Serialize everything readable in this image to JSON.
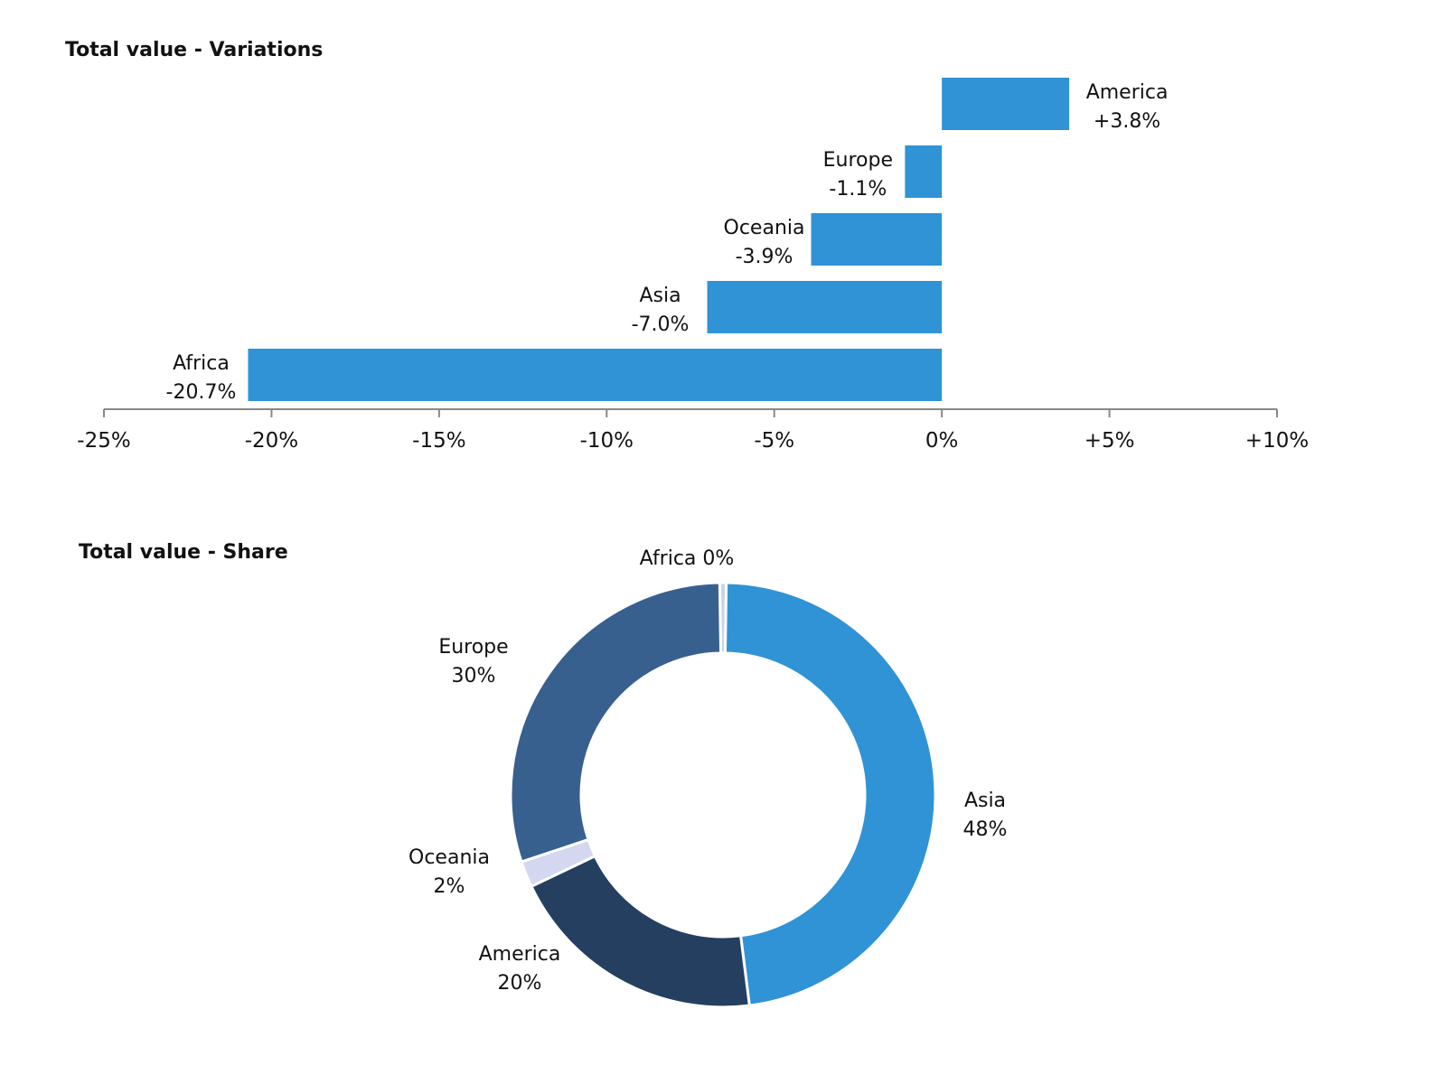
{
  "chart_data": [
    {
      "type": "bar",
      "orientation": "horizontal",
      "title": "Total value - Variations",
      "categories": [
        "America",
        "Europe",
        "Oceania",
        "Asia",
        "Africa"
      ],
      "values": [
        3.8,
        -1.1,
        -3.9,
        -7.0,
        -20.7
      ],
      "value_labels": [
        "+3.8%",
        "-1.1%",
        "-3.9%",
        "-7.0%",
        "-20.7%"
      ],
      "xlim": [
        -25,
        10
      ],
      "ticks": [
        -25,
        -20,
        -15,
        -10,
        -5,
        0,
        5,
        10
      ],
      "tick_labels": [
        "-25%",
        "-20%",
        "-15%",
        "-10%",
        "-5%",
        "0%",
        "+5%",
        "+10%"
      ],
      "grid": false,
      "bar_color": "#2F93D6"
    },
    {
      "type": "pie",
      "donut": true,
      "title": "Total value - Share",
      "slices": [
        {
          "label": "Africa",
          "value": 0.5,
          "value_label": "0%",
          "color": "#C9D3EC"
        },
        {
          "label": "Asia",
          "value": 48,
          "value_label": "48%",
          "color": "#2F93D6"
        },
        {
          "label": "America",
          "value": 20,
          "value_label": "20%",
          "color": "#253F60"
        },
        {
          "label": "Oceania",
          "value": 2,
          "value_label": "2%",
          "color": "#D3D8F0"
        },
        {
          "label": "Europe",
          "value": 30,
          "value_label": "30%",
          "color": "#37608F"
        }
      ]
    }
  ]
}
